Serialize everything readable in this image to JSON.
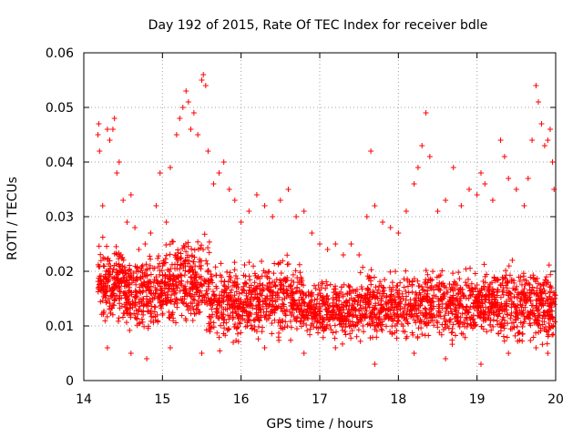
{
  "chart_data": {
    "type": "scatter",
    "title": "Day 192 of 2015, Rate Of TEC Index for receiver bdle",
    "xlabel": "GPS time / hours",
    "ylabel": "ROTI / TECUs",
    "xlim": [
      14,
      20
    ],
    "ylim": [
      0,
      0.06
    ],
    "x_ticks": [
      "14",
      "15",
      "16",
      "17",
      "18",
      "19",
      "20"
    ],
    "y_ticks": [
      "0",
      "0.01",
      "0.02",
      "0.03",
      "0.04",
      "0.05",
      "0.06"
    ],
    "grid": true,
    "marker": "plus",
    "color": "#ff0000",
    "series": [
      {
        "name": "ROTI",
        "points": [
          [
            14.18,
            0.045
          ],
          [
            14.19,
            0.047
          ],
          [
            14.2,
            0.042
          ],
          [
            14.24,
            0.032
          ],
          [
            14.3,
            0.046
          ],
          [
            14.33,
            0.044
          ],
          [
            14.37,
            0.046
          ],
          [
            14.39,
            0.048
          ],
          [
            14.42,
            0.038
          ],
          [
            14.45,
            0.04
          ],
          [
            14.5,
            0.033
          ],
          [
            14.55,
            0.029
          ],
          [
            14.6,
            0.034
          ],
          [
            14.65,
            0.028
          ],
          [
            14.7,
            0.024
          ],
          [
            14.78,
            0.025
          ],
          [
            14.85,
            0.027
          ],
          [
            14.92,
            0.032
          ],
          [
            14.97,
            0.038
          ],
          [
            15.05,
            0.029
          ],
          [
            15.1,
            0.039
          ],
          [
            15.18,
            0.045
          ],
          [
            15.22,
            0.048
          ],
          [
            15.26,
            0.05
          ],
          [
            15.3,
            0.053
          ],
          [
            15.33,
            0.051
          ],
          [
            15.36,
            0.046
          ],
          [
            15.4,
            0.049
          ],
          [
            15.45,
            0.045
          ],
          [
            15.5,
            0.055
          ],
          [
            15.52,
            0.056
          ],
          [
            15.55,
            0.054
          ],
          [
            15.58,
            0.042
          ],
          [
            15.65,
            0.036
          ],
          [
            15.72,
            0.038
          ],
          [
            15.78,
            0.04
          ],
          [
            15.85,
            0.035
          ],
          [
            15.92,
            0.033
          ],
          [
            16.0,
            0.029
          ],
          [
            16.1,
            0.031
          ],
          [
            16.2,
            0.034
          ],
          [
            16.3,
            0.032
          ],
          [
            16.4,
            0.03
          ],
          [
            16.5,
            0.033
          ],
          [
            16.6,
            0.035
          ],
          [
            16.7,
            0.03
          ],
          [
            16.8,
            0.031
          ],
          [
            16.9,
            0.027
          ],
          [
            17.0,
            0.025
          ],
          [
            17.1,
            0.024
          ],
          [
            17.2,
            0.025
          ],
          [
            17.3,
            0.023
          ],
          [
            17.4,
            0.025
          ],
          [
            17.5,
            0.023
          ],
          [
            17.6,
            0.03
          ],
          [
            17.65,
            0.042
          ],
          [
            17.7,
            0.032
          ],
          [
            17.8,
            0.029
          ],
          [
            17.9,
            0.028
          ],
          [
            18.0,
            0.027
          ],
          [
            18.1,
            0.031
          ],
          [
            18.2,
            0.036
          ],
          [
            18.25,
            0.039
          ],
          [
            18.3,
            0.043
          ],
          [
            18.35,
            0.049
          ],
          [
            18.4,
            0.041
          ],
          [
            18.5,
            0.031
          ],
          [
            18.6,
            0.033
          ],
          [
            18.7,
            0.039
          ],
          [
            18.8,
            0.032
          ],
          [
            18.9,
            0.035
          ],
          [
            19.0,
            0.034
          ],
          [
            19.05,
            0.038
          ],
          [
            19.1,
            0.036
          ],
          [
            19.2,
            0.033
          ],
          [
            19.3,
            0.044
          ],
          [
            19.35,
            0.041
          ],
          [
            19.4,
            0.037
          ],
          [
            19.5,
            0.035
          ],
          [
            19.6,
            0.032
          ],
          [
            19.65,
            0.037
          ],
          [
            19.7,
            0.044
          ],
          [
            19.75,
            0.054
          ],
          [
            19.78,
            0.051
          ],
          [
            19.82,
            0.047
          ],
          [
            19.86,
            0.043
          ],
          [
            19.9,
            0.044
          ],
          [
            19.93,
            0.046
          ],
          [
            19.96,
            0.04
          ],
          [
            19.98,
            0.035
          ],
          [
            14.25,
            0.021
          ],
          [
            14.33,
            0.017
          ],
          [
            14.42,
            0.015
          ],
          [
            14.55,
            0.018
          ],
          [
            14.7,
            0.013
          ],
          [
            14.85,
            0.016
          ],
          [
            15.0,
            0.012
          ],
          [
            15.15,
            0.014
          ],
          [
            15.3,
            0.011
          ],
          [
            15.45,
            0.013
          ],
          [
            15.6,
            0.01
          ],
          [
            15.75,
            0.012
          ],
          [
            15.9,
            0.014
          ],
          [
            16.05,
            0.011
          ],
          [
            16.2,
            0.009
          ],
          [
            16.35,
            0.012
          ],
          [
            16.5,
            0.01
          ],
          [
            16.65,
            0.013
          ],
          [
            16.8,
            0.011
          ],
          [
            16.95,
            0.012
          ],
          [
            17.1,
            0.014
          ],
          [
            17.25,
            0.011
          ],
          [
            17.4,
            0.013
          ],
          [
            17.55,
            0.01
          ],
          [
            17.7,
            0.012
          ],
          [
            17.85,
            0.014
          ],
          [
            18.0,
            0.011
          ],
          [
            18.15,
            0.013
          ],
          [
            18.3,
            0.015
          ],
          [
            18.45,
            0.012
          ],
          [
            18.6,
            0.014
          ],
          [
            18.75,
            0.011
          ],
          [
            18.9,
            0.013
          ],
          [
            19.05,
            0.012
          ],
          [
            19.2,
            0.014
          ],
          [
            19.35,
            0.011
          ],
          [
            19.5,
            0.013
          ],
          [
            19.65,
            0.015
          ],
          [
            19.8,
            0.012
          ],
          [
            19.95,
            0.01
          ],
          [
            14.3,
            0.006
          ],
          [
            14.6,
            0.005
          ],
          [
            14.8,
            0.004
          ],
          [
            15.1,
            0.006
          ],
          [
            15.5,
            0.005
          ],
          [
            15.9,
            0.007
          ],
          [
            16.3,
            0.006
          ],
          [
            16.8,
            0.005
          ],
          [
            17.2,
            0.006
          ],
          [
            17.7,
            0.003
          ],
          [
            18.2,
            0.005
          ],
          [
            18.6,
            0.004
          ],
          [
            19.05,
            0.003
          ],
          [
            19.4,
            0.005
          ],
          [
            19.75,
            0.006
          ],
          [
            19.9,
            0.005
          ]
        ]
      }
    ],
    "density_bands": [
      {
        "x_start": 14.18,
        "x_end": 14.5,
        "y_center": 0.018,
        "y_spread": 0.009,
        "count": 190
      },
      {
        "x_start": 14.5,
        "x_end": 15.0,
        "y_center": 0.016,
        "y_spread": 0.009,
        "count": 260
      },
      {
        "x_start": 15.0,
        "x_end": 15.6,
        "y_center": 0.018,
        "y_spread": 0.01,
        "count": 320
      },
      {
        "x_start": 15.6,
        "x_end": 16.0,
        "y_center": 0.014,
        "y_spread": 0.009,
        "count": 200
      },
      {
        "x_start": 16.0,
        "x_end": 16.8,
        "y_center": 0.015,
        "y_spread": 0.009,
        "count": 380
      },
      {
        "x_start": 16.8,
        "x_end": 17.5,
        "y_center": 0.013,
        "y_spread": 0.007,
        "count": 320
      },
      {
        "x_start": 17.5,
        "x_end": 18.4,
        "y_center": 0.014,
        "y_spread": 0.008,
        "count": 420
      },
      {
        "x_start": 18.4,
        "x_end": 19.2,
        "y_center": 0.014,
        "y_spread": 0.008,
        "count": 380
      },
      {
        "x_start": 19.2,
        "x_end": 20.0,
        "y_center": 0.014,
        "y_spread": 0.009,
        "count": 400
      }
    ]
  }
}
